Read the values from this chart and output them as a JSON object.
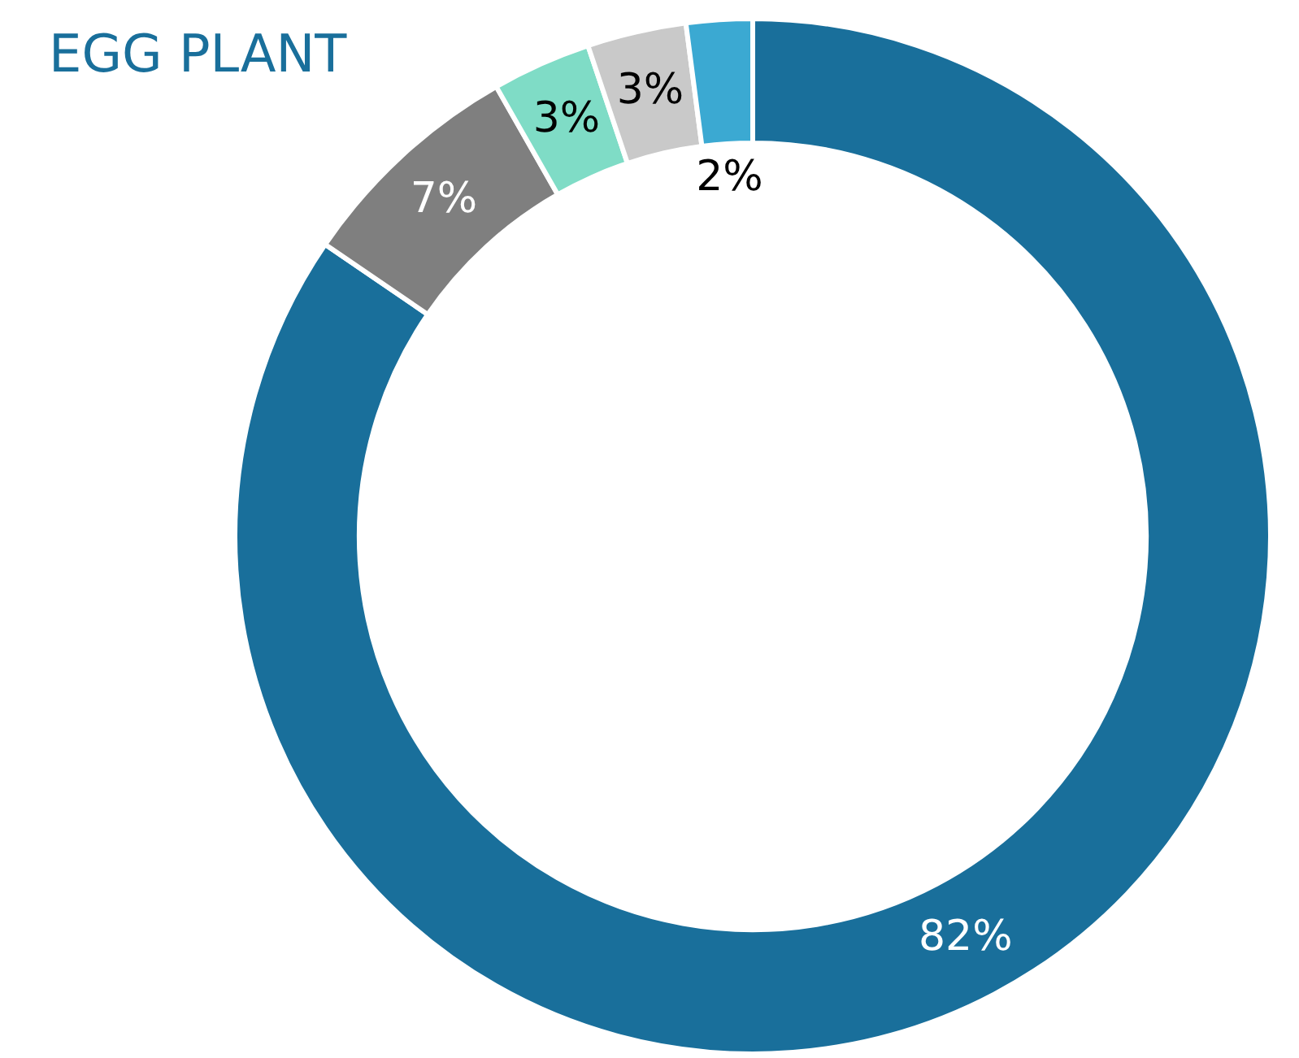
{
  "chart_data": {
    "type": "donut",
    "title": "EGG PLANT",
    "categories": [
      null,
      null,
      null,
      null,
      null
    ],
    "values": [
      82,
      7,
      3,
      3,
      2
    ],
    "colors": [
      "#196f9b",
      "#7f7f7f",
      "#7fdcc6",
      "#c9c9c9",
      "#3ba9d2"
    ],
    "value_labels": [
      "82%",
      "7%",
      "3%",
      "3%",
      "2%"
    ],
    "legend": false
  }
}
